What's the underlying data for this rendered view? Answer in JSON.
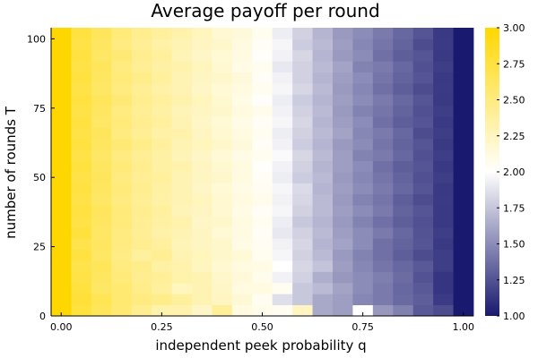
{
  "chart_data": {
    "type": "heatmap",
    "title": "Average payoff per round",
    "xlabel": "independent peek probability  q",
    "ylabel": "number of rounds  T",
    "x_ticks": [
      {
        "value": 0.0,
        "label": "0.00"
      },
      {
        "value": 0.25,
        "label": "0.25"
      },
      {
        "value": 0.5,
        "label": "0.50"
      },
      {
        "value": 0.75,
        "label": "0.75"
      },
      {
        "value": 1.0,
        "label": "1.00"
      }
    ],
    "y_ticks": [
      {
        "value": 0,
        "label": "0"
      },
      {
        "value": 25,
        "label": "25"
      },
      {
        "value": 50,
        "label": "50"
      },
      {
        "value": 75,
        "label": "75"
      },
      {
        "value": 100,
        "label": "100"
      }
    ],
    "xlim": [
      -0.025,
      1.025
    ],
    "ylim": [
      0,
      104
    ],
    "x_step": 0.05,
    "y_step": 4,
    "colorbar": {
      "min": 1.0,
      "max": 3.0,
      "colors": [
        "#191970",
        "#ffffff",
        "#ffd700"
      ],
      "ticks": [
        {
          "value": 1.0,
          "label": "1.00"
        },
        {
          "value": 1.25,
          "label": "1.25"
        },
        {
          "value": 1.5,
          "label": "1.50"
        },
        {
          "value": 1.75,
          "label": "1.75"
        },
        {
          "value": 2.0,
          "label": "2.00"
        },
        {
          "value": 2.25,
          "label": "2.25"
        },
        {
          "value": 2.5,
          "label": "2.50"
        },
        {
          "value": 2.75,
          "label": "2.75"
        },
        {
          "value": 3.0,
          "label": "3.00"
        }
      ]
    },
    "row_labels_T": [
      2,
      6,
      10,
      14,
      18,
      22,
      26,
      30,
      34,
      38,
      42,
      46,
      50,
      54,
      58,
      62,
      66,
      70,
      74,
      78,
      82,
      86,
      90,
      94,
      98,
      102
    ],
    "column_labels_q": [
      0.0,
      0.05,
      0.1,
      0.15,
      0.2,
      0.25,
      0.3,
      0.35,
      0.4,
      0.45,
      0.5,
      0.55,
      0.6,
      0.65,
      0.7,
      0.75,
      0.8,
      0.85,
      0.9,
      0.95,
      1.0
    ],
    "z": [
      [
        3.0,
        2.75,
        2.65,
        2.55,
        2.44,
        2.32,
        2.32,
        2.22,
        2.4,
        2.12,
        2.08,
        2.05,
        2.24,
        1.62,
        1.58,
        2.0,
        1.55,
        1.45,
        1.28,
        1.22,
        1.0
      ],
      [
        3.0,
        2.77,
        2.67,
        2.56,
        2.5,
        2.45,
        2.38,
        2.3,
        2.24,
        2.17,
        2.06,
        1.86,
        1.76,
        1.62,
        1.58,
        1.48,
        1.42,
        1.35,
        1.3,
        1.15,
        1.0
      ],
      [
        3.0,
        2.75,
        2.6,
        2.56,
        2.46,
        2.38,
        2.26,
        2.3,
        2.22,
        2.12,
        2.12,
        2.05,
        1.76,
        1.7,
        1.6,
        1.5,
        1.42,
        1.34,
        1.28,
        1.12,
        1.0
      ],
      [
        3.0,
        2.72,
        2.62,
        2.52,
        2.44,
        2.4,
        2.33,
        2.3,
        2.2,
        2.15,
        2.08,
        1.94,
        1.8,
        1.65,
        1.55,
        1.5,
        1.44,
        1.36,
        1.25,
        1.12,
        1.0
      ],
      [
        3.0,
        2.7,
        2.65,
        2.5,
        2.45,
        2.36,
        2.32,
        2.25,
        2.18,
        2.12,
        2.1,
        2.0,
        1.82,
        1.74,
        1.58,
        1.48,
        1.4,
        1.34,
        1.28,
        1.16,
        1.0
      ],
      [
        3.0,
        2.74,
        2.6,
        2.48,
        2.38,
        2.42,
        2.3,
        2.26,
        2.2,
        2.16,
        2.06,
        1.96,
        1.8,
        1.7,
        1.56,
        1.46,
        1.38,
        1.3,
        1.22,
        1.16,
        1.0
      ],
      [
        3.0,
        2.7,
        2.62,
        2.5,
        2.44,
        2.38,
        2.28,
        2.24,
        2.2,
        2.1,
        2.05,
        1.94,
        1.82,
        1.68,
        1.6,
        1.5,
        1.38,
        1.32,
        1.26,
        1.14,
        1.0
      ],
      [
        3.0,
        2.76,
        2.6,
        2.5,
        2.42,
        2.34,
        2.3,
        2.24,
        2.16,
        2.12,
        2.04,
        1.9,
        1.8,
        1.7,
        1.58,
        1.5,
        1.42,
        1.34,
        1.25,
        1.16,
        1.0
      ],
      [
        3.0,
        2.72,
        2.62,
        2.52,
        2.42,
        2.36,
        2.32,
        2.22,
        2.2,
        2.12,
        2.06,
        1.92,
        1.76,
        1.68,
        1.56,
        1.46,
        1.38,
        1.3,
        1.24,
        1.14,
        1.0
      ],
      [
        3.0,
        2.74,
        2.64,
        2.52,
        2.44,
        2.38,
        2.28,
        2.24,
        2.18,
        2.1,
        2.04,
        1.96,
        1.8,
        1.7,
        1.58,
        1.5,
        1.42,
        1.32,
        1.26,
        1.14,
        1.0
      ],
      [
        3.0,
        2.72,
        2.6,
        2.5,
        2.42,
        2.35,
        2.3,
        2.26,
        2.18,
        2.12,
        2.08,
        1.94,
        1.82,
        1.7,
        1.56,
        1.46,
        1.4,
        1.3,
        1.22,
        1.15,
        1.0
      ],
      [
        3.0,
        2.74,
        2.62,
        2.52,
        2.44,
        2.36,
        2.3,
        2.22,
        2.16,
        2.1,
        2.05,
        1.96,
        1.84,
        1.68,
        1.58,
        1.5,
        1.42,
        1.34,
        1.26,
        1.14,
        1.0
      ],
      [
        3.0,
        2.72,
        2.64,
        2.5,
        2.42,
        2.38,
        2.3,
        2.24,
        2.2,
        2.12,
        2.04,
        1.92,
        1.78,
        1.7,
        1.56,
        1.48,
        1.4,
        1.32,
        1.24,
        1.16,
        1.0
      ],
      [
        3.0,
        2.75,
        2.62,
        2.52,
        2.44,
        2.36,
        2.32,
        2.24,
        2.18,
        2.12,
        2.02,
        1.94,
        1.8,
        1.68,
        1.58,
        1.5,
        1.38,
        1.3,
        1.26,
        1.14,
        1.0
      ],
      [
        3.0,
        2.72,
        2.6,
        2.5,
        2.42,
        2.36,
        2.28,
        2.22,
        2.16,
        2.1,
        2.06,
        1.98,
        1.82,
        1.7,
        1.58,
        1.46,
        1.42,
        1.34,
        1.24,
        1.16,
        1.0
      ],
      [
        3.0,
        2.74,
        2.62,
        2.54,
        2.46,
        2.38,
        2.3,
        2.26,
        2.2,
        2.14,
        2.04,
        1.94,
        1.78,
        1.68,
        1.56,
        1.5,
        1.4,
        1.32,
        1.26,
        1.14,
        1.0
      ],
      [
        3.0,
        2.72,
        2.64,
        2.5,
        2.42,
        2.35,
        2.32,
        2.24,
        2.18,
        2.12,
        2.06,
        1.92,
        1.8,
        1.7,
        1.6,
        1.48,
        1.42,
        1.34,
        1.22,
        1.16,
        1.0
      ],
      [
        3.0,
        2.74,
        2.6,
        2.52,
        2.44,
        2.38,
        2.3,
        2.22,
        2.16,
        2.1,
        2.04,
        1.96,
        1.82,
        1.68,
        1.58,
        1.5,
        1.38,
        1.3,
        1.26,
        1.14,
        1.0
      ],
      [
        3.0,
        2.72,
        2.62,
        2.5,
        2.42,
        2.36,
        2.28,
        2.24,
        2.2,
        2.12,
        2.08,
        1.94,
        1.8,
        1.7,
        1.56,
        1.46,
        1.4,
        1.32,
        1.24,
        1.16,
        1.0
      ],
      [
        3.0,
        2.74,
        2.64,
        2.54,
        2.44,
        2.38,
        2.32,
        2.26,
        2.18,
        2.1,
        2.02,
        1.92,
        1.78,
        1.68,
        1.58,
        1.5,
        1.42,
        1.34,
        1.26,
        1.14,
        1.0
      ],
      [
        3.0,
        2.72,
        2.6,
        2.5,
        2.42,
        2.35,
        2.3,
        2.22,
        2.16,
        2.12,
        2.06,
        1.96,
        1.82,
        1.7,
        1.56,
        1.48,
        1.38,
        1.3,
        1.22,
        1.15,
        1.0
      ],
      [
        3.0,
        2.74,
        2.62,
        2.52,
        2.46,
        2.38,
        2.3,
        2.24,
        2.2,
        2.14,
        2.04,
        1.94,
        1.8,
        1.68,
        1.58,
        1.5,
        1.4,
        1.32,
        1.26,
        1.14,
        1.0
      ],
      [
        3.0,
        2.72,
        2.64,
        2.5,
        2.42,
        2.36,
        2.32,
        2.26,
        2.18,
        2.1,
        2.06,
        1.9,
        1.8,
        1.7,
        1.6,
        1.46,
        1.42,
        1.34,
        1.24,
        1.16,
        1.0
      ],
      [
        3.0,
        2.74,
        2.6,
        2.54,
        2.44,
        2.38,
        2.28,
        2.22,
        2.16,
        2.12,
        2.02,
        1.94,
        1.82,
        1.68,
        1.56,
        1.5,
        1.38,
        1.3,
        1.26,
        1.14,
        1.0
      ],
      [
        3.0,
        2.72,
        2.62,
        2.5,
        2.42,
        2.35,
        2.3,
        2.24,
        2.2,
        2.12,
        2.04,
        1.96,
        1.78,
        1.7,
        1.58,
        1.48,
        1.4,
        1.32,
        1.22,
        1.15,
        1.0
      ],
      [
        3.0,
        2.74,
        2.64,
        2.52,
        2.44,
        2.38,
        2.32,
        2.26,
        2.18,
        2.14,
        2.06,
        1.92,
        1.8,
        1.68,
        1.56,
        1.5,
        1.42,
        1.34,
        1.26,
        1.14,
        1.0
      ]
    ]
  }
}
